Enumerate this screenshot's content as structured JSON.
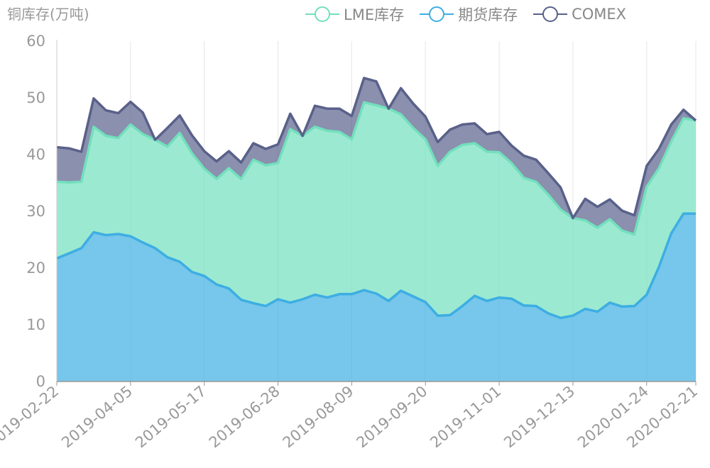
{
  "unit_label": "铜库存(万吨)",
  "legend": [
    {
      "name": "LME库存",
      "color": "#72e0bd"
    },
    {
      "name": "期货库存",
      "color": "#3daee3"
    },
    {
      "name": "COMEX",
      "color": "#59618a"
    }
  ],
  "chart_data": {
    "type": "area",
    "stacked": true,
    "ylim": [
      0,
      60
    ],
    "yticks": [
      0,
      10,
      20,
      30,
      40,
      50,
      60
    ],
    "x_tick_labels": [
      "2019-02-22",
      "2019-04-05",
      "2019-05-17",
      "2019-06-28",
      "2019-08-09",
      "2019-09-20",
      "2019-11-01",
      "2019-12-13",
      "2020-01-24",
      "2020-02-21"
    ],
    "x_tick_indices": [
      0,
      6,
      12,
      18,
      24,
      30,
      36,
      42,
      48,
      52
    ],
    "grid": "vertical",
    "x": [
      "2019-02-22",
      "2019-03-01",
      "2019-03-08",
      "2019-03-15",
      "2019-03-22",
      "2019-03-29",
      "2019-04-05",
      "2019-04-12",
      "2019-04-19",
      "2019-04-26",
      "2019-05-03",
      "2019-05-10",
      "2019-05-17",
      "2019-05-24",
      "2019-05-31",
      "2019-06-07",
      "2019-06-14",
      "2019-06-21",
      "2019-06-28",
      "2019-07-05",
      "2019-07-12",
      "2019-07-19",
      "2019-07-26",
      "2019-08-02",
      "2019-08-09",
      "2019-08-16",
      "2019-08-23",
      "2019-08-30",
      "2019-09-06",
      "2019-09-13",
      "2019-09-20",
      "2019-09-27",
      "2019-10-04",
      "2019-10-11",
      "2019-10-18",
      "2019-10-25",
      "2019-11-01",
      "2019-11-08",
      "2019-11-15",
      "2019-11-22",
      "2019-11-29",
      "2019-12-06",
      "2019-12-13",
      "2019-12-20",
      "2019-12-27",
      "2020-01-03",
      "2020-01-10",
      "2020-01-17",
      "2020-01-24",
      "2020-01-31",
      "2020-02-07",
      "2020-02-14",
      "2020-02-21"
    ],
    "series": [
      {
        "name": "期货库存",
        "color": "#3daee3",
        "values": [
          21.7,
          22.6,
          23.5,
          26.3,
          25.8,
          26.0,
          25.6,
          24.5,
          23.5,
          21.9,
          21.1,
          19.3,
          18.6,
          17.1,
          16.4,
          14.4,
          13.8,
          13.3,
          14.5,
          13.9,
          14.5,
          15.3,
          14.8,
          15.4,
          15.4,
          16.1,
          15.5,
          14.2,
          16.0,
          15.0,
          14.0,
          11.6,
          11.7,
          13.3,
          15.1,
          14.2,
          14.8,
          14.6,
          13.4,
          13.3,
          12.0,
          11.2,
          11.6,
          12.8,
          12.3,
          13.9,
          13.2,
          13.3,
          15.3,
          20.2,
          26.1,
          29.6,
          29.6
        ]
      },
      {
        "name": "LME库存",
        "color": "#72e0bd",
        "values": [
          13.5,
          12.5,
          11.7,
          18.6,
          17.5,
          16.9,
          19.7,
          19.1,
          19.1,
          19.5,
          22.7,
          20.9,
          18.9,
          18.6,
          21.2,
          21.3,
          25.3,
          24.8,
          24.0,
          30.6,
          28.8,
          29.6,
          29.4,
          28.6,
          27.3,
          33.1,
          33.2,
          33.9,
          31.1,
          29.7,
          28.7,
          26.4,
          28.8,
          28.4,
          26.9,
          26.3,
          25.6,
          23.9,
          22.5,
          21.9,
          20.9,
          19.1,
          17.2,
          15.6,
          14.8,
          14.7,
          13.4,
          12.6,
          19.0,
          17.4,
          16.2,
          16.8,
          16.4
        ]
      },
      {
        "name": "COMEX",
        "color": "#59618a",
        "values": [
          6.1,
          6.0,
          5.3,
          5.0,
          4.5,
          4.4,
          4.0,
          3.8,
          0.0,
          3.3,
          3.1,
          3.2,
          3.1,
          3.1,
          3.0,
          2.9,
          2.9,
          2.9,
          3.3,
          2.7,
          0.0,
          3.7,
          3.9,
          4.1,
          4.1,
          4.3,
          4.2,
          0.0,
          4.6,
          4.3,
          4.0,
          4.2,
          3.9,
          3.6,
          3.5,
          3.1,
          3.6,
          3.1,
          3.9,
          3.9,
          3.8,
          3.9,
          0.0,
          3.8,
          3.7,
          3.5,
          3.5,
          3.4,
          3.7,
          3.4,
          3.0,
          1.5,
          0.0
        ]
      }
    ]
  }
}
